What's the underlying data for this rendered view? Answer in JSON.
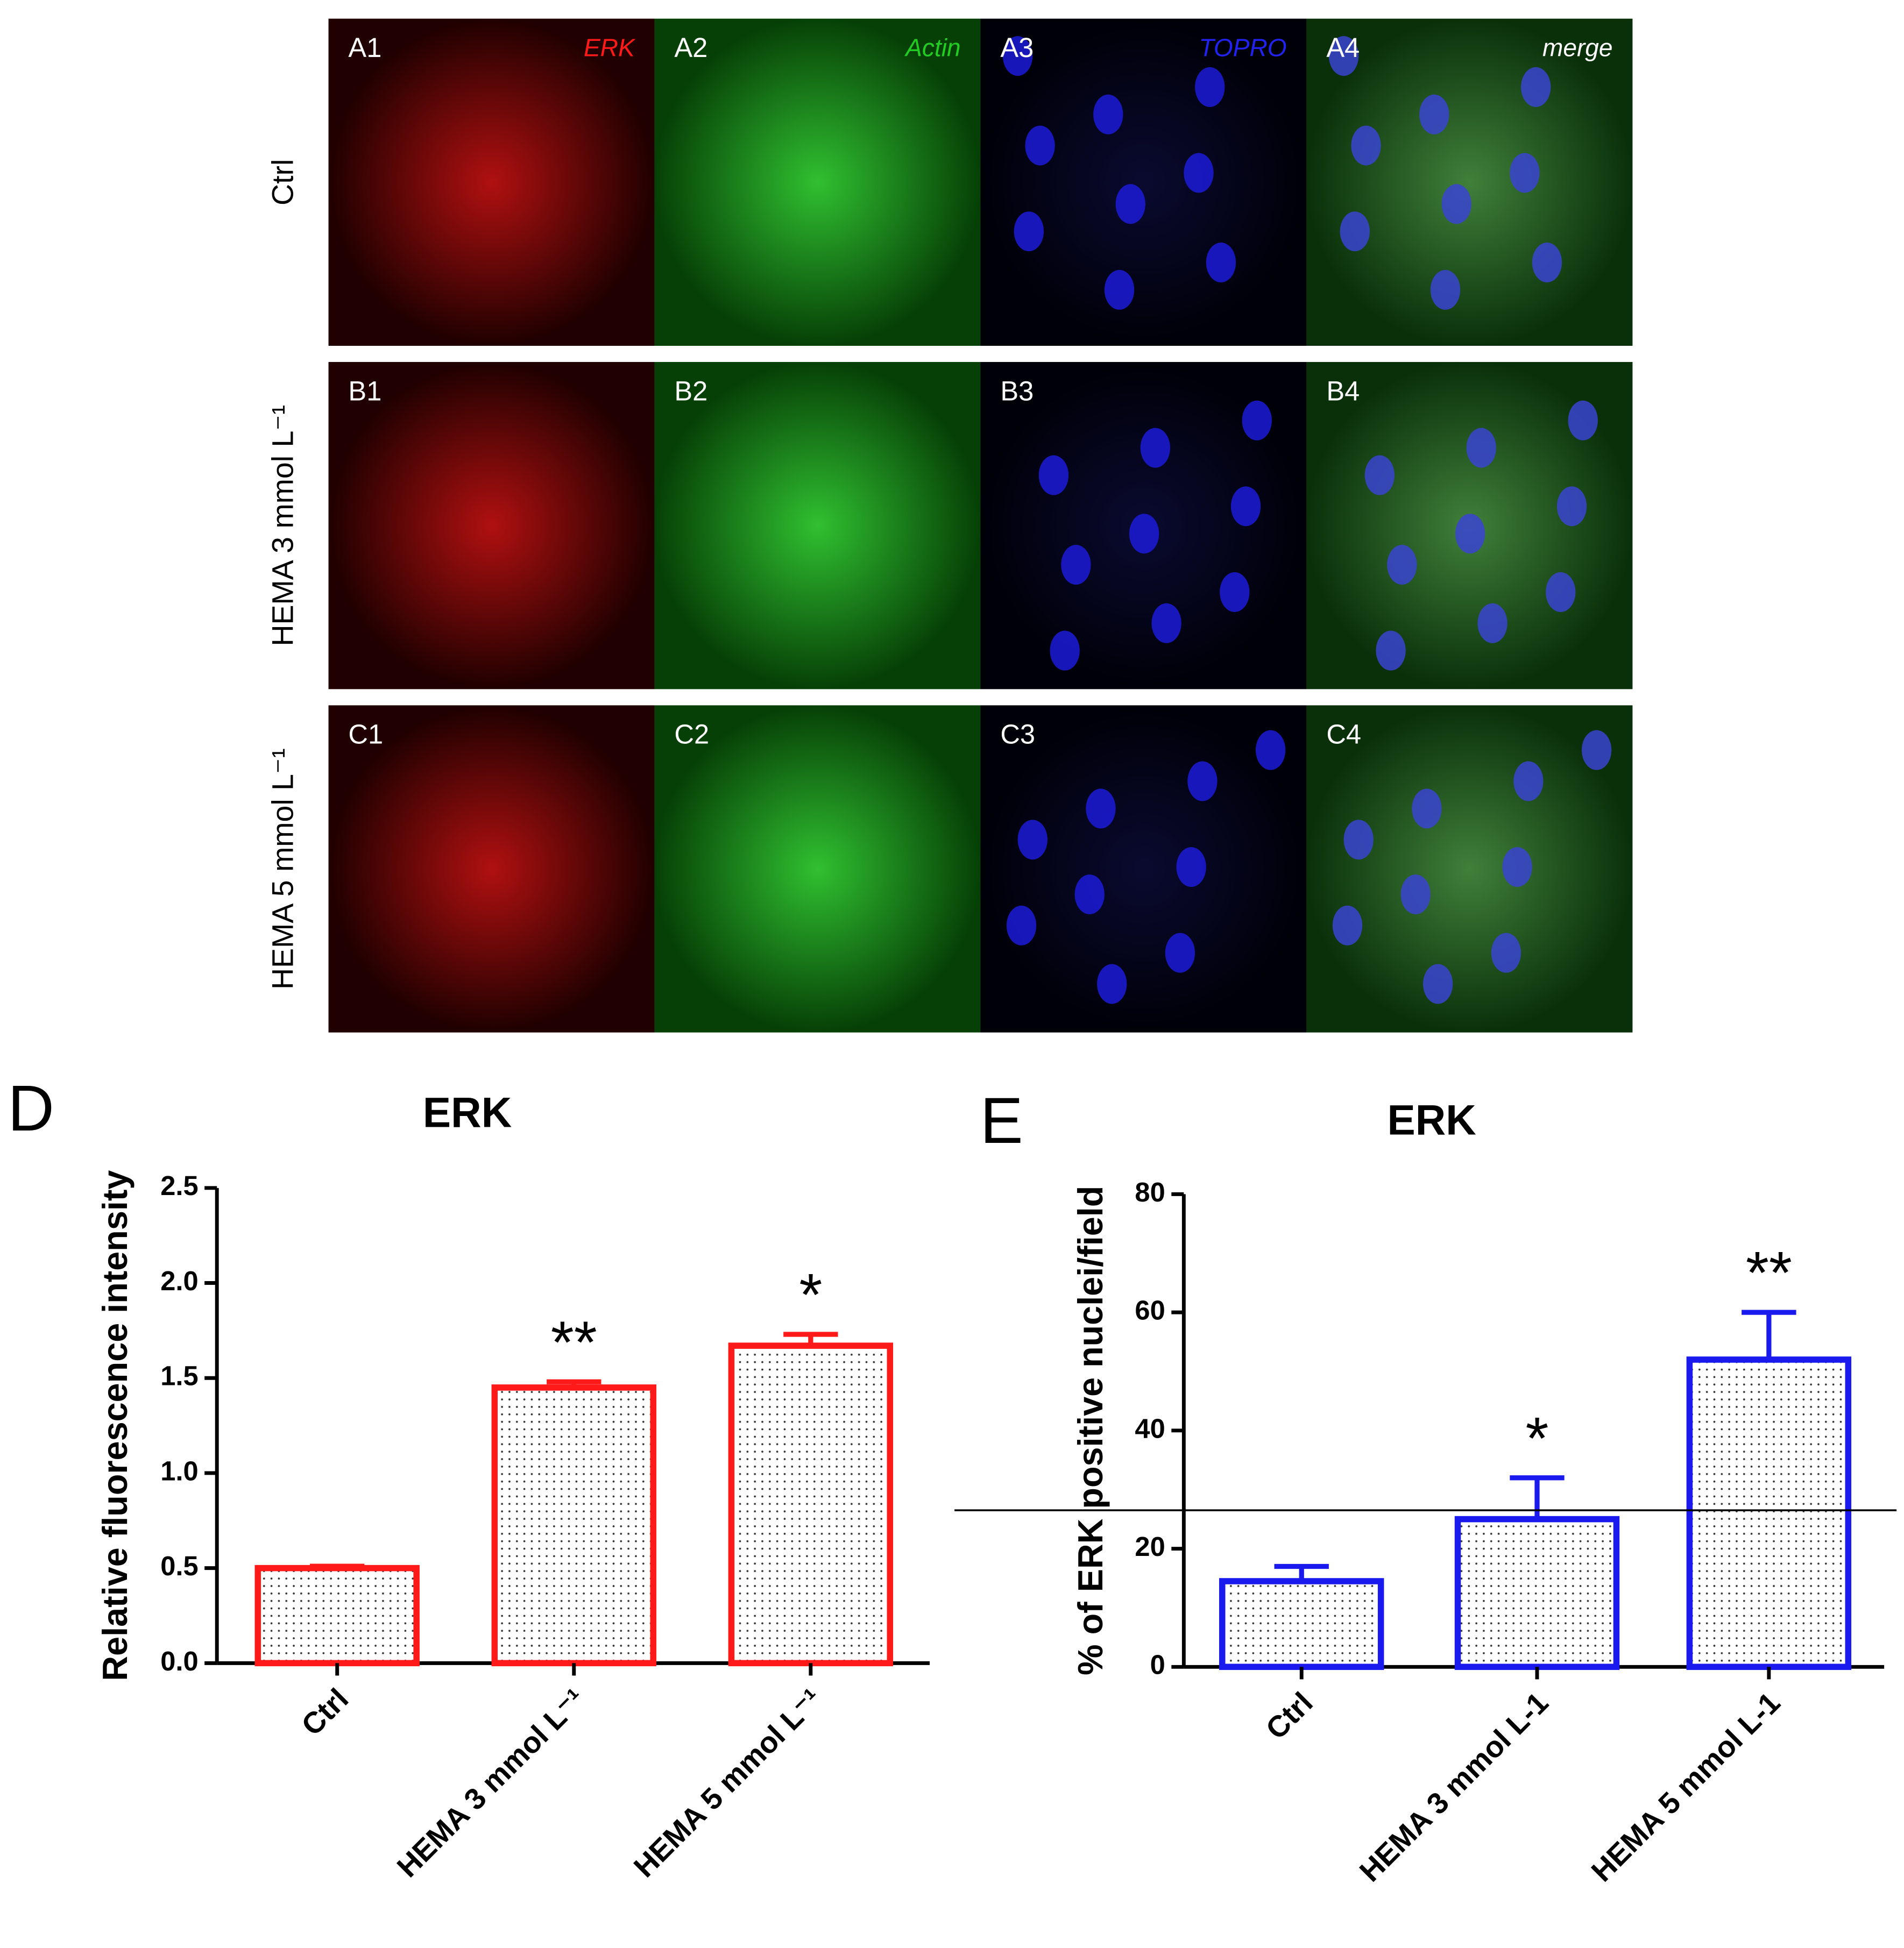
{
  "panels": {
    "rows": [
      "Ctrl",
      "HEMA 3 mmol L⁻¹",
      "HEMA 5 mmol L⁻¹"
    ],
    "channels": [
      {
        "name": "ERK",
        "color": "#ff1a1a"
      },
      {
        "name": "Actin",
        "color": "#22cc22"
      },
      {
        "name": "TOPRO",
        "color": "#2222ee"
      },
      {
        "name": "merge",
        "color": "#ffffff"
      }
    ],
    "labels": [
      [
        "A1",
        "A2",
        "A3",
        "A4"
      ],
      [
        "B1",
        "B2",
        "B3",
        "B4"
      ],
      [
        "C1",
        "C2",
        "C3",
        "C4"
      ]
    ]
  },
  "chart_data": [
    {
      "type": "bar",
      "panel_label": "D",
      "title": "ERK",
      "y_label": "Relative fluorescence intensity",
      "categories": [
        "Ctrl",
        "HEMA 3 mmol L⁻¹",
        "HEMA 5 mmol L⁻¹"
      ],
      "values": [
        0.5,
        1.45,
        1.67
      ],
      "errors": [
        0.01,
        0.03,
        0.06
      ],
      "annotations": [
        null,
        "**",
        "*"
      ],
      "color": "#ff1a1a",
      "ylim": [
        0,
        2.5
      ],
      "yticks": [
        {
          "value": 0,
          "label": "0.0"
        },
        0.5,
        {
          "value": 1,
          "label": "1.0"
        },
        1.5,
        {
          "value": 2,
          "label": "2.0"
        },
        2.5
      ]
    },
    {
      "type": "bar",
      "panel_label": "E",
      "title": "ERK",
      "y_label": "% of ERK positive nuclei/field",
      "categories": [
        "Ctrl",
        "HEMA 3 mmol L-1",
        "HEMA 5 mmol L-1"
      ],
      "values": [
        14.5,
        25,
        52
      ],
      "errors": [
        2.5,
        7,
        8
      ],
      "annotations": [
        null,
        "*",
        "**"
      ],
      "color": "#1a1aee",
      "ylim": [
        0,
        80
      ],
      "yticks": [
        0,
        20,
        40,
        60,
        80
      ],
      "reference_line": 26.5
    }
  ]
}
